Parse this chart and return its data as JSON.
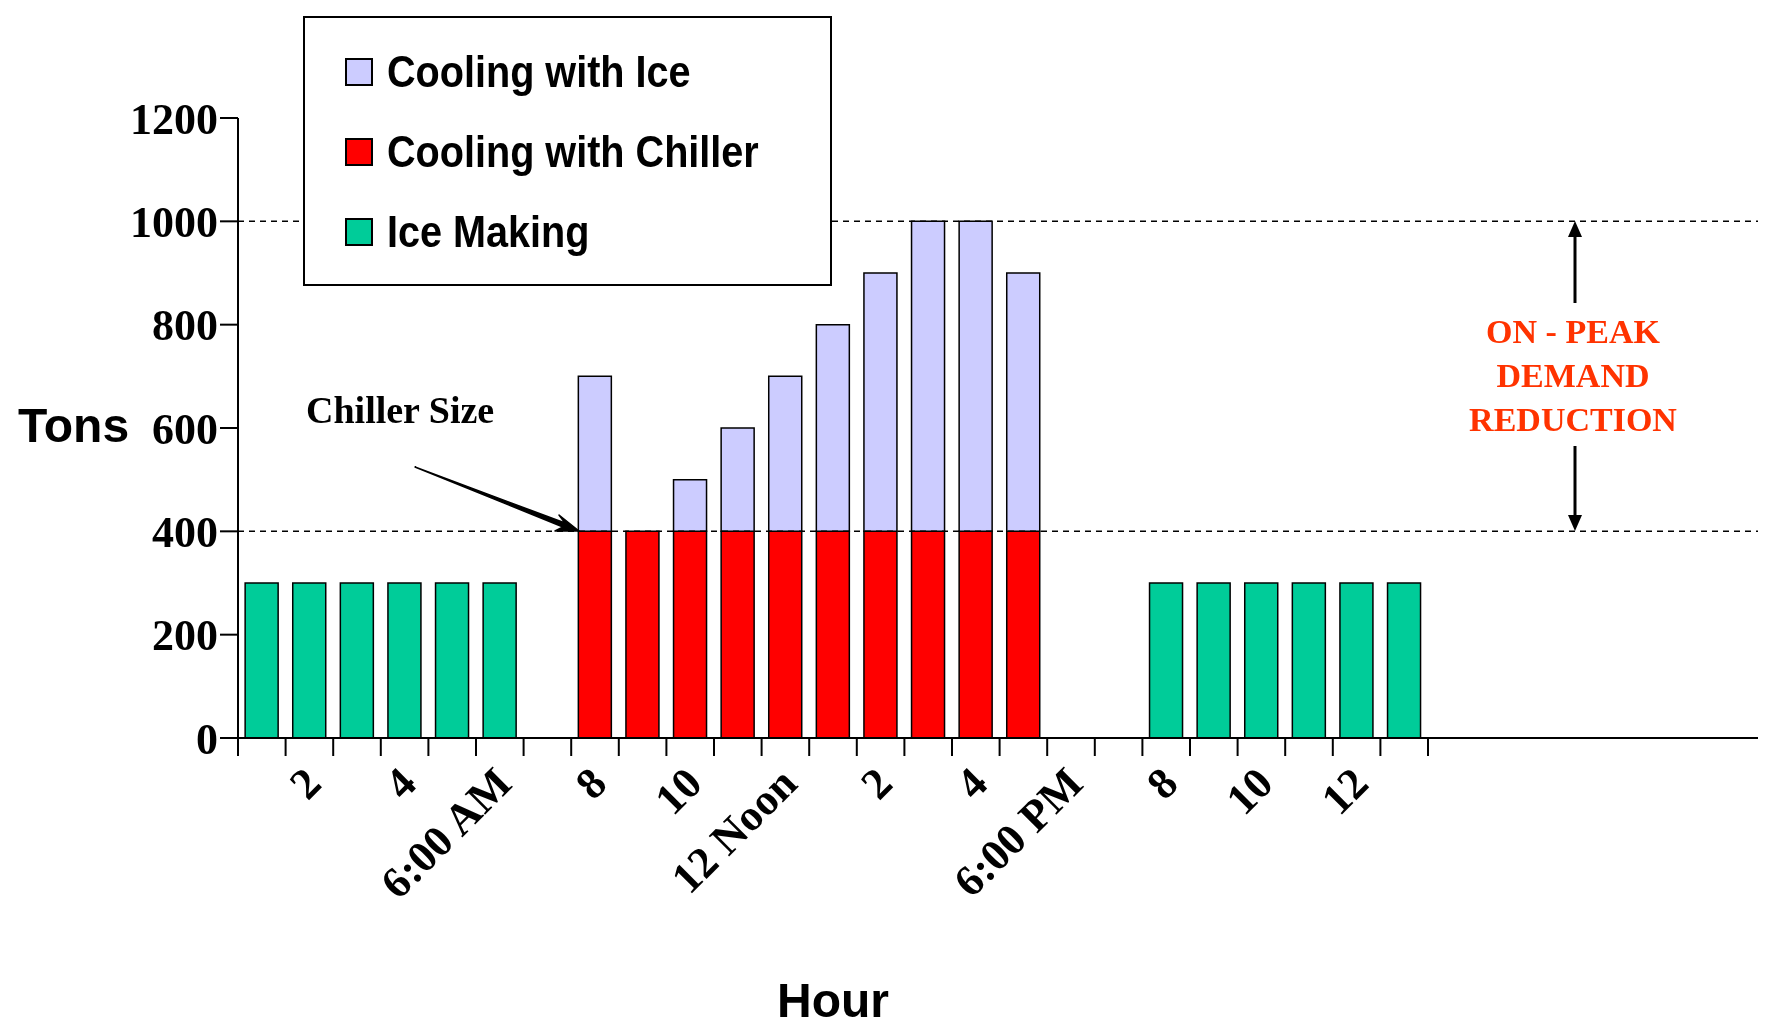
{
  "chart_data": {
    "type": "bar",
    "stacked": true,
    "ylabel": "Tons",
    "xlabel": "Hour",
    "categories": [
      null,
      "2",
      null,
      "4",
      null,
      "6:00 AM",
      null,
      "8",
      null,
      "10",
      null,
      "12 Noon",
      null,
      "2",
      null,
      "4",
      null,
      "6:00 PM",
      null,
      "8",
      null,
      "10",
      null,
      "12",
      null
    ],
    "series": [
      {
        "name": "Ice Making",
        "color": "#00cc99",
        "values": [
          300,
          300,
          300,
          300,
          300,
          300,
          null,
          null,
          null,
          null,
          null,
          null,
          null,
          null,
          null,
          null,
          null,
          null,
          null,
          300,
          300,
          300,
          300,
          300,
          300
        ]
      },
      {
        "name": "Cooling with Chiller",
        "color": "#ff0000",
        "values": [
          null,
          null,
          null,
          null,
          null,
          null,
          null,
          400,
          400,
          400,
          400,
          400,
          400,
          400,
          400,
          400,
          400,
          null,
          null,
          null,
          null,
          null,
          null,
          null,
          null
        ]
      },
      {
        "name": "Cooling with Ice",
        "color": "#ccccff",
        "values": [
          null,
          null,
          null,
          null,
          null,
          null,
          null,
          300,
          null,
          100,
          200,
          300,
          400,
          500,
          600,
          600,
          500,
          null,
          null,
          null,
          null,
          null,
          null,
          null,
          null
        ]
      }
    ],
    "ylim": [
      0,
      1200
    ],
    "yticks": [
      0,
      200,
      400,
      600,
      800,
      1000,
      1200
    ],
    "grid": false,
    "legend": "top",
    "ref_lines": [
      {
        "axis": "y",
        "value": 1000,
        "color": "#000000",
        "line_style": "dashed"
      },
      {
        "axis": "y",
        "value": 400,
        "color": "#000000",
        "line_style": "dashed"
      }
    ],
    "annotations": [
      "Chiller Size",
      "ON - PEAK\nDEMAND REDUCTION"
    ]
  }
}
